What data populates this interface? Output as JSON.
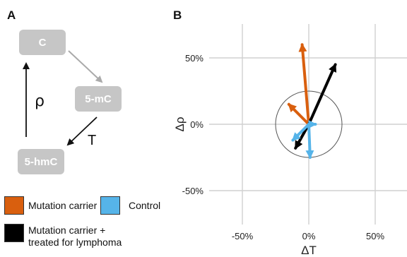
{
  "panel_a": {
    "letter": "A",
    "nodes": {
      "c": "C",
      "mc": "5-mC",
      "hmc": "5-hmC"
    },
    "rho_label": "ρ",
    "t_label": "T"
  },
  "legend": [
    {
      "label": "Mutation carrier",
      "color": "#d95f0e"
    },
    {
      "label": "Control",
      "color": "#56b4e9"
    },
    {
      "label": "Mutation carrier +\ntreated for lymphoma",
      "color": "#000000"
    }
  ],
  "panel_b": {
    "letter": "B"
  },
  "chart_data": {
    "type": "scatter",
    "xlabel": "ΔT",
    "ylabel": "Δρ",
    "xlim": [
      -75,
      75
    ],
    "ylim": [
      -75,
      75
    ],
    "xticks": [
      "-50%",
      "0%",
      "50%"
    ],
    "yticks": [
      "50%",
      "0%",
      "-50%"
    ],
    "grid": true,
    "reference_circle_radius": 25,
    "series": [
      {
        "color": "#d95f0e",
        "arrows": [
          {
            "from": [
              0,
              0
            ],
            "to": [
              -5,
              60
            ]
          },
          {
            "from": [
              0,
              0
            ],
            "to": [
              -15,
              15
            ]
          }
        ]
      },
      {
        "color": "#000000",
        "arrows": [
          {
            "from": [
              0,
              0
            ],
            "to": [
              20,
              45
            ]
          },
          {
            "from": [
              0,
              0
            ],
            "to": [
              -10,
              -18
            ]
          }
        ]
      },
      {
        "color": "#56b4e9",
        "arrows": [
          {
            "from": [
              0,
              0
            ],
            "to": [
              5,
              0
            ]
          },
          {
            "from": [
              0,
              0
            ],
            "to": [
              -12,
              -12
            ]
          },
          {
            "from": [
              0,
              0
            ],
            "to": [
              1,
              -25
            ]
          }
        ]
      }
    ]
  }
}
